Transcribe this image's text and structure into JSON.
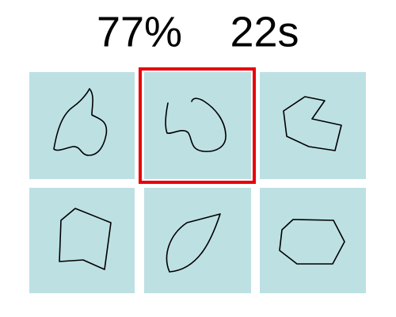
{
  "hud": {
    "score": "77%",
    "timer": "22s"
  }
}
